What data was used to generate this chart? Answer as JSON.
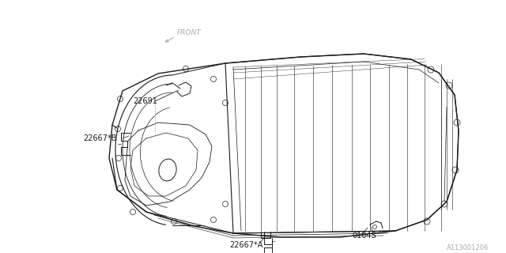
{
  "bg_color": "#ffffff",
  "line_color": "#1a1a1a",
  "gray_color": "#aaaaaa",
  "diagram_id": "A113001206",
  "labels": {
    "front": "FRONT",
    "p22691": "22691",
    "p22667b": "22667*B",
    "p22667a": "22667*A",
    "p0104s": "0104S"
  },
  "figsize": [
    6.4,
    3.2
  ],
  "dpi": 100
}
